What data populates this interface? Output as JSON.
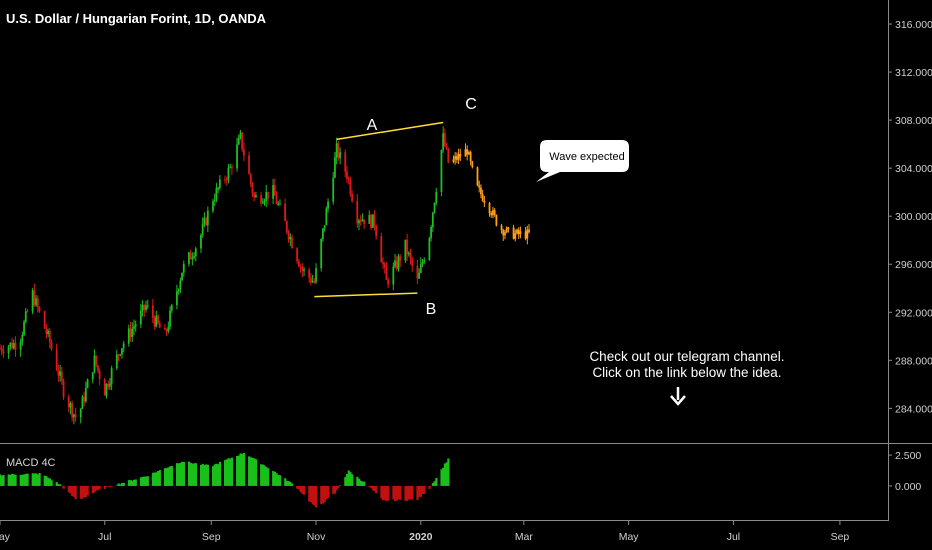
{
  "title": "U.S. Dollar / Hungarian Forint, 1D, OANDA",
  "indicator_label": "MACD 4C",
  "callout": "Wave expected",
  "note_lines": [
    "Check out our telegram channel.",
    "Click on the link below the idea."
  ],
  "wave_points": [
    {
      "label": "A",
      "date": "2019-11-13",
      "price": 306.4
    },
    {
      "label": "B",
      "date": "2019-12-30",
      "price": 293.6
    },
    {
      "label": "C",
      "date": "2020-01-14",
      "price": 307.8
    }
  ],
  "colors": {
    "up": "#1fbf1f",
    "down": "#e01818",
    "projection": "#ff9f1a",
    "pattern_line": "#ffe033",
    "hist_up": "#19c019",
    "hist_down": "#c21010",
    "axis_text": "#d0d0d0"
  },
  "icons": {
    "arrow": "down-arrow-icon"
  },
  "chart_data": {
    "type": "candlestick",
    "price_axis": {
      "ticks": [
        "316.000",
        "312.000",
        "308.000",
        "304.000",
        "300.000",
        "296.000",
        "292.000",
        "288.000",
        "284.000"
      ],
      "range": [
        281.2,
        318.0
      ]
    },
    "macd_axis": {
      "ticks": [
        "2.500",
        "0.000"
      ],
      "range": [
        -2.6,
        3.4
      ]
    },
    "x_ticks": [
      "May",
      "Jul",
      "Sep",
      "Nov",
      "2020",
      "Mar",
      "May",
      "Jul",
      "Sep"
    ],
    "x_range": [
      "2019-05-01",
      "2020-09-29"
    ],
    "price_waypoints": [
      [
        "2019-05-01",
        289.0
      ],
      [
        "2019-05-12",
        289.5
      ],
      [
        "2019-05-20",
        293.5
      ],
      [
        "2019-05-30",
        289.5
      ],
      [
        "2019-06-08",
        285.0
      ],
      [
        "2019-06-15",
        283.0
      ],
      [
        "2019-06-25",
        288.0
      ],
      [
        "2019-07-01",
        285.5
      ],
      [
        "2019-07-10",
        289.0
      ],
      [
        "2019-07-25",
        292.5
      ],
      [
        "2019-08-05",
        290.0
      ],
      [
        "2019-08-15",
        295.5
      ],
      [
        "2019-08-25",
        298.0
      ],
      [
        "2019-09-02",
        301.5
      ],
      [
        "2019-09-12",
        304.0
      ],
      [
        "2019-09-18",
        306.5
      ],
      [
        "2019-09-26",
        301.5
      ],
      [
        "2019-10-07",
        302.0
      ],
      [
        "2019-10-15",
        299.0
      ],
      [
        "2019-10-24",
        295.5
      ],
      [
        "2019-10-31",
        294.5
      ],
      [
        "2019-11-06",
        299.5
      ],
      [
        "2019-11-13",
        305.5
      ],
      [
        "2019-11-19",
        303.5
      ],
      [
        "2019-11-25",
        300.0
      ],
      [
        "2019-12-05",
        299.5
      ],
      [
        "2019-12-12",
        294.5
      ],
      [
        "2019-12-18",
        296.0
      ],
      [
        "2019-12-23",
        297.5
      ],
      [
        "2019-12-30",
        294.5
      ],
      [
        "2020-01-06",
        298.5
      ],
      [
        "2020-01-14",
        306.5
      ],
      [
        "2020-01-17",
        304.5
      ]
    ],
    "projection_waypoints": [
      [
        "2020-01-19",
        304.5
      ],
      [
        "2020-01-28",
        305.5
      ],
      [
        "2020-02-02",
        302.5
      ],
      [
        "2020-02-09",
        301.0
      ],
      [
        "2020-02-16",
        299.0
      ],
      [
        "2020-02-23",
        298.5
      ],
      [
        "2020-03-04",
        298.5
      ]
    ],
    "macd_waypoints": [
      [
        "2019-05-01",
        0.9
      ],
      [
        "2019-05-25",
        1.0
      ],
      [
        "2019-06-05",
        0.1
      ],
      [
        "2019-06-15",
        -1.2
      ],
      [
        "2019-06-28",
        -0.3
      ],
      [
        "2019-07-05",
        0.0
      ],
      [
        "2019-07-25",
        0.8
      ],
      [
        "2019-08-15",
        2.0
      ],
      [
        "2019-09-01",
        1.6
      ],
      [
        "2019-09-20",
        2.7
      ],
      [
        "2019-10-05",
        1.4
      ],
      [
        "2019-10-20",
        0.0
      ],
      [
        "2019-11-01",
        -1.8
      ],
      [
        "2019-11-12",
        -0.6
      ],
      [
        "2019-11-20",
        1.2
      ],
      [
        "2019-11-30",
        0.2
      ],
      [
        "2019-12-10",
        -1.2
      ],
      [
        "2019-12-30",
        -1.1
      ],
      [
        "2020-01-06",
        -0.2
      ],
      [
        "2020-01-17",
        2.2
      ]
    ]
  }
}
